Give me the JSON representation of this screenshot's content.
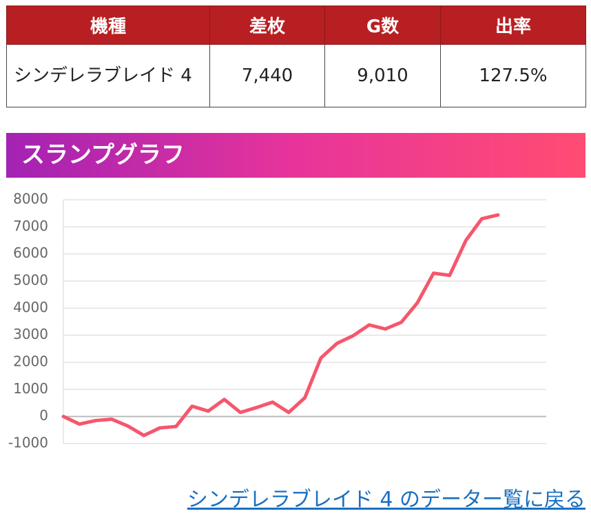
{
  "table": {
    "header": [
      "機種",
      "差枚",
      "G数",
      "出率"
    ],
    "rows": [
      [
        "シンデレラブレイド 4",
        "7,440",
        "9,010",
        "127.5%"
      ]
    ]
  },
  "section_title": "スランプグラフ",
  "chart_data": {
    "type": "line",
    "categories": [
      null,
      null,
      null,
      null,
      null,
      null,
      null,
      null,
      null,
      null,
      null,
      null,
      null,
      null,
      null,
      null,
      null,
      null,
      null,
      null,
      null,
      null,
      null,
      null,
      null,
      null,
      null,
      null,
      null,
      null,
      null
    ],
    "series": [
      {
        "name": null,
        "color": "#f5576c",
        "values": [
          0,
          -280,
          -150,
          -100,
          -350,
          -700,
          -420,
          -370,
          380,
          200,
          630,
          150,
          330,
          530,
          150,
          690,
          2160,
          2700,
          2980,
          3380,
          3230,
          3480,
          4200,
          5290,
          5210,
          6490,
          7300,
          7440,
          null,
          null,
          null
        ]
      }
    ],
    "ylim": [
      -1000,
      8000
    ],
    "yticks": [
      -1000,
      0,
      1000,
      2000,
      3000,
      4000,
      5000,
      6000,
      7000,
      8000
    ],
    "grid": true
  },
  "link": "シンデレラブレイド 4 のデーター覧に戻る"
}
